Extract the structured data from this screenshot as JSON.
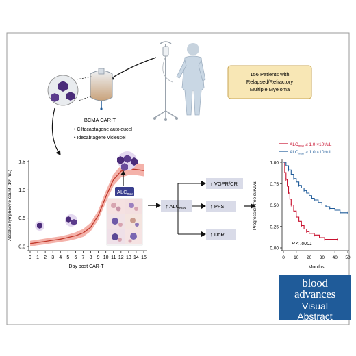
{
  "patients_box": {
    "line1": "156 Patients with",
    "line2": "Relapsed/Refractory",
    "line3": "Multiple Myeloma"
  },
  "cart": {
    "title": "BCMA CAR-T",
    "products": [
      "• Ciltacabtagene autoleucel",
      "• Idecabtagene vicleucel"
    ]
  },
  "alc_chart": {
    "ylabel": "Absolute lymphocyte count (10³ /uL)",
    "xlabel": "Day post CAR-T",
    "callout": "ALC",
    "callout_sub": "max",
    "chart_data": {
      "type": "line",
      "x": [
        0,
        1,
        2,
        3,
        4,
        5,
        6,
        7,
        8,
        9,
        10,
        11,
        12,
        13,
        14,
        15
      ],
      "y": [
        0.05,
        0.07,
        0.09,
        0.11,
        0.13,
        0.16,
        0.19,
        0.24,
        0.34,
        0.55,
        0.88,
        1.18,
        1.33,
        1.37,
        1.36,
        1.34
      ],
      "band_lower": [
        0.0,
        0.02,
        0.04,
        0.06,
        0.08,
        0.1,
        0.13,
        0.17,
        0.27,
        0.47,
        0.78,
        1.07,
        1.22,
        1.26,
        1.26,
        1.24
      ],
      "band_upper": [
        0.1,
        0.12,
        0.14,
        0.16,
        0.18,
        0.21,
        0.25,
        0.31,
        0.42,
        0.64,
        0.98,
        1.28,
        1.43,
        1.48,
        1.47,
        1.46
      ],
      "xlim": [
        0,
        15
      ],
      "ylim": [
        0,
        1.5
      ],
      "xticks": [
        "0",
        "1",
        "2",
        "3",
        "4",
        "5",
        "6",
        "7",
        "8",
        "9",
        "10",
        "11",
        "12",
        "13",
        "14",
        "15"
      ],
      "yticks": [
        "0.0",
        "0.5",
        "1.0",
        "1.5"
      ],
      "line_color": "#c0392b",
      "band_color": "#f2a59b"
    }
  },
  "flow": {
    "source": "↑ ALC",
    "source_sub": "max",
    "outcomes": [
      "↑ VGPR/CR",
      "↑ PFS",
      "↑ DoR"
    ]
  },
  "km_chart": {
    "ylabel": "Progression-free survival",
    "xlabel": "Months",
    "pvalue": "P < .0001",
    "legend": [
      {
        "prefix": "ALC",
        "sub": "max",
        "suffix": " ≤ 1.0 ×10³/uL",
        "color": "#c8102e"
      },
      {
        "prefix": "ALC",
        "sub": "max",
        "suffix": " > 1.0 ×10³/uL",
        "color": "#1f5b99"
      }
    ],
    "chart_data": {
      "type": "line",
      "xlim": [
        0,
        50
      ],
      "ylim": [
        0,
        1
      ],
      "xticks": [
        "0",
        "10",
        "20",
        "30",
        "40",
        "50"
      ],
      "yticks": [
        "0.00",
        "0.25",
        "0.50",
        "0.75",
        "1.00"
      ],
      "series": [
        {
          "name": "ALCmax ≤ 1.0 ×10³/uL",
          "color": "#c8102e",
          "x": [
            0,
            1,
            2,
            3,
            4,
            5,
            6,
            8,
            10,
            12,
            14,
            16,
            18,
            20,
            24,
            28,
            32,
            38,
            42
          ],
          "y": [
            1.0,
            0.88,
            0.8,
            0.72,
            0.64,
            0.57,
            0.5,
            0.43,
            0.36,
            0.31,
            0.26,
            0.22,
            0.19,
            0.17,
            0.15,
            0.12,
            0.1,
            0.1,
            0.1
          ]
        },
        {
          "name": "ALCmax > 1.0 ×10³/uL",
          "color": "#1f5b99",
          "x": [
            0,
            2,
            4,
            6,
            8,
            10,
            12,
            14,
            16,
            18,
            20,
            22,
            24,
            27,
            30,
            33,
            36,
            40,
            44,
            48,
            50
          ],
          "y": [
            1.0,
            0.96,
            0.91,
            0.86,
            0.81,
            0.77,
            0.73,
            0.7,
            0.67,
            0.64,
            0.61,
            0.58,
            0.56,
            0.53,
            0.5,
            0.48,
            0.46,
            0.44,
            0.41,
            0.41,
            0.41
          ]
        }
      ]
    }
  },
  "logo": {
    "line1": "blood",
    "line2": "advances",
    "line3": "Visual",
    "line4": "Abstract"
  }
}
